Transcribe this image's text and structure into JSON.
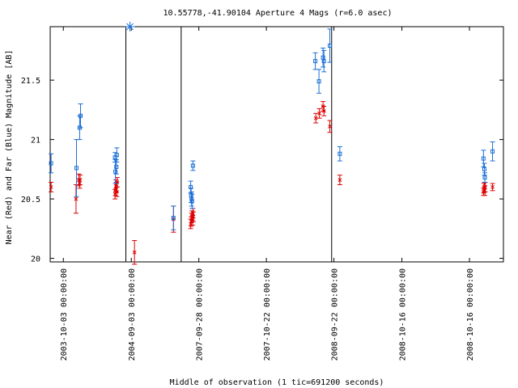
{
  "chart_data": {
    "type": "scatter",
    "title": "10.55778,-41.90104   Aperture 4 Mags (r=6.0 asec)",
    "xlabel": "Middle of observation (1 tic=691200 seconds)",
    "ylabel": "Near (Red) and Far (Blue) Magnitude [AB]",
    "ylim": [
      21.95,
      19.97
    ],
    "y_reversed": true,
    "xlim": [
      0,
      100
    ],
    "grid": false,
    "legend": "none",
    "y_ticks": [
      {
        "value": 20.0,
        "label": "20"
      },
      {
        "value": 20.5,
        "label": "20.5"
      },
      {
        "value": 21.0,
        "label": "21"
      },
      {
        "value": 21.5,
        "label": "21.5"
      }
    ],
    "x_ticks": [
      {
        "pos": 2.9,
        "label": "2003-10-03 00:00:00"
      },
      {
        "pos": 17.9,
        "label": "2004-09-03 00:00:00"
      },
      {
        "pos": 32.8,
        "label": "2007-09-28 00:00:00"
      },
      {
        "pos": 47.7,
        "label": "2007-10-22 00:00:00"
      },
      {
        "pos": 62.6,
        "label": "2008-09-22 00:00:00"
      },
      {
        "pos": 77.6,
        "label": "2008-10-16 00:00:00"
      },
      {
        "pos": 92.5,
        "label": "2008-10-16 00:00:00"
      }
    ],
    "segment_dividers": [
      16.7,
      28.9,
      62.1
    ],
    "series": [
      {
        "color": "#dd0000",
        "marker": "x",
        "points": [
          {
            "x": 0.2,
            "y": 20.6,
            "err": 0.04
          },
          {
            "x": 5.7,
            "y": 20.5,
            "err": 0.12
          },
          {
            "x": 6.3,
            "y": 20.66,
            "err": 0.05
          },
          {
            "x": 6.5,
            "y": 20.63,
            "err": 0.04
          },
          {
            "x": 6.6,
            "y": 20.66,
            "err": 0.04
          },
          {
            "x": 14.3,
            "y": 20.54,
            "err": 0.04
          },
          {
            "x": 14.4,
            "y": 20.58,
            "err": 0.05
          },
          {
            "x": 14.5,
            "y": 20.61,
            "err": 0.05
          },
          {
            "x": 14.6,
            "y": 20.6,
            "err": 0.04
          },
          {
            "x": 14.7,
            "y": 20.56,
            "err": 0.04
          },
          {
            "x": 14.8,
            "y": 20.64,
            "err": 0.04
          },
          {
            "x": 18.6,
            "y": 20.05,
            "err": 0.1
          },
          {
            "x": 27.2,
            "y": 20.33,
            "err": 0.11
          },
          {
            "x": 31.0,
            "y": 20.29,
            "err": 0.04
          },
          {
            "x": 31.1,
            "y": 20.31,
            "err": 0.04
          },
          {
            "x": 31.2,
            "y": 20.34,
            "err": 0.04
          },
          {
            "x": 31.3,
            "y": 20.36,
            "err": 0.04
          },
          {
            "x": 31.4,
            "y": 20.32,
            "err": 0.04
          },
          {
            "x": 31.5,
            "y": 20.38,
            "err": 0.04
          },
          {
            "x": 31.6,
            "y": 20.35,
            "err": 0.04
          },
          {
            "x": 58.6,
            "y": 21.18,
            "err": 0.04
          },
          {
            "x": 59.4,
            "y": 21.22,
            "err": 0.04
          },
          {
            "x": 60.2,
            "y": 21.28,
            "err": 0.04
          },
          {
            "x": 60.4,
            "y": 21.24,
            "err": 0.04
          },
          {
            "x": 61.7,
            "y": 21.11,
            "err": 0.05
          },
          {
            "x": 63.9,
            "y": 20.66,
            "err": 0.04
          },
          {
            "x": 95.6,
            "y": 20.56,
            "err": 0.03
          },
          {
            "x": 95.7,
            "y": 20.59,
            "err": 0.04
          },
          {
            "x": 95.8,
            "y": 20.6,
            "err": 0.04
          },
          {
            "x": 95.9,
            "y": 20.57,
            "err": 0.04
          },
          {
            "x": 96.0,
            "y": 20.6,
            "err": 0.04
          },
          {
            "x": 97.6,
            "y": 20.6,
            "err": 0.03
          }
        ]
      },
      {
        "color": "#1a6fd6",
        "marker": "square",
        "points": [
          {
            "x": 0.2,
            "y": 20.8,
            "err": 0.08
          },
          {
            "x": 5.8,
            "y": 20.76,
            "err": 0.24
          },
          {
            "x": 6.5,
            "y": 21.1,
            "err": 0.1
          },
          {
            "x": 6.7,
            "y": 21.2,
            "err": 0.1
          },
          {
            "x": 14.3,
            "y": 20.85,
            "err": 0.04
          },
          {
            "x": 14.4,
            "y": 20.73,
            "err": 0.1
          },
          {
            "x": 14.6,
            "y": 20.77,
            "err": 0.06
          },
          {
            "x": 14.7,
            "y": 20.87,
            "err": 0.06
          },
          {
            "x": 27.2,
            "y": 20.34,
            "err": 0.1
          },
          {
            "x": 31.0,
            "y": 20.6,
            "err": 0.05
          },
          {
            "x": 31.1,
            "y": 20.53,
            "err": 0.06
          },
          {
            "x": 31.2,
            "y": 20.5,
            "err": 0.06
          },
          {
            "x": 31.3,
            "y": 20.48,
            "err": 0.06
          },
          {
            "x": 31.5,
            "y": 20.78,
            "err": 0.04
          },
          {
            "x": 58.5,
            "y": 21.66,
            "err": 0.07
          },
          {
            "x": 59.3,
            "y": 21.49,
            "err": 0.1
          },
          {
            "x": 60.2,
            "y": 21.69,
            "err": 0.08
          },
          {
            "x": 60.4,
            "y": 21.66,
            "err": 0.09
          },
          {
            "x": 61.7,
            "y": 21.79,
            "err": 0.14
          },
          {
            "x": 63.9,
            "y": 20.88,
            "err": 0.06
          },
          {
            "x": 95.6,
            "y": 20.84,
            "err": 0.07
          },
          {
            "x": 95.8,
            "y": 20.75,
            "err": 0.05
          },
          {
            "x": 95.9,
            "y": 20.68,
            "err": 0.04
          },
          {
            "x": 97.6,
            "y": 20.9,
            "err": 0.08
          }
        ]
      }
    ],
    "special_markers": [
      {
        "x": 17.6,
        "y": 21.95,
        "symbol": "asterisk",
        "color": "#1a6fd6"
      }
    ]
  }
}
